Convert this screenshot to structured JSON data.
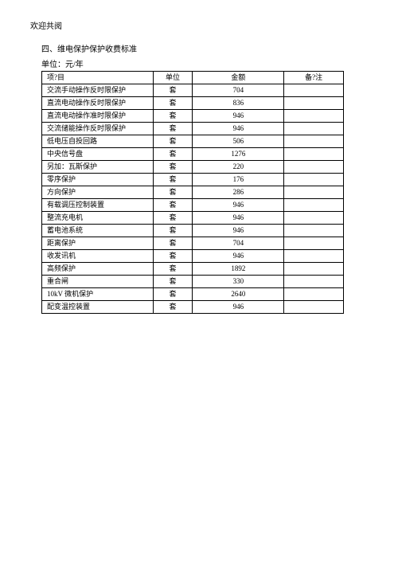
{
  "header": "欢迎共阅",
  "section_title": "四、维电保护保护收费标准",
  "unit_label": "单位：元/年",
  "table": {
    "columns": [
      "项?目",
      "单位",
      "金额",
      "备?注"
    ],
    "rows": [
      [
        "交流手动操作反时限保护",
        "套",
        "704",
        ""
      ],
      [
        "直流电动操作反时限保护",
        "套",
        "836",
        ""
      ],
      [
        "直流电动操作准时限保护",
        "套",
        "946",
        ""
      ],
      [
        "交流储能操作反时限保护",
        "套",
        "946",
        ""
      ],
      [
        "低电压自投回路",
        "套",
        "506",
        ""
      ],
      [
        "中央信号盘",
        "套",
        "1276",
        ""
      ],
      [
        "另加：瓦斯保护",
        "套",
        "220",
        ""
      ],
      [
        "零序保护",
        "套",
        "176",
        ""
      ],
      [
        "方向保护",
        "套",
        "286",
        ""
      ],
      [
        "有载调压控制装置",
        "套",
        "946",
        ""
      ],
      [
        "整流充电机",
        "套",
        "946",
        ""
      ],
      [
        "蓄电池系统",
        "套",
        "946",
        ""
      ],
      [
        "距离保护",
        "套",
        "704",
        ""
      ],
      [
        "收发讯机",
        "套",
        "946",
        ""
      ],
      [
        "高频保护",
        "套",
        "1892",
        ""
      ],
      [
        "重合闸",
        "套",
        "330",
        ""
      ],
      [
        "10kV 微机保护",
        "套",
        "2640",
        ""
      ],
      [
        "配变温控装置",
        "套",
        "946",
        ""
      ]
    ]
  }
}
